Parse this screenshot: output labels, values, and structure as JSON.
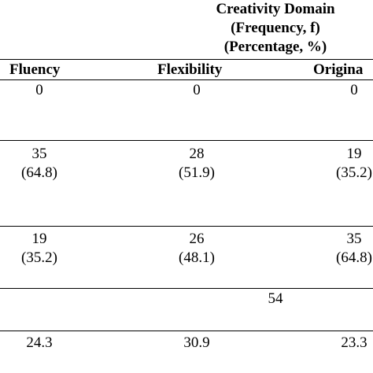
{
  "header": {
    "title": "Creativity Domain",
    "line2": "(Frequency, f)",
    "line3": "(Percentage, %)"
  },
  "columns": [
    "Fluency",
    "Flexibility",
    "Origina"
  ],
  "rows": [
    {
      "values": [
        "0",
        "0",
        "0"
      ]
    },
    {
      "values": [
        "35",
        "28",
        "19"
      ],
      "pcts": [
        "(64.8)",
        "(51.9)",
        "(35.2)"
      ]
    },
    {
      "values": [
        "19",
        "26",
        "35"
      ],
      "pcts": [
        "(35.2)",
        "(48.1)",
        "(64.8)"
      ]
    }
  ],
  "total": "54",
  "means": [
    "24.3",
    "30.9",
    "23.3"
  ]
}
